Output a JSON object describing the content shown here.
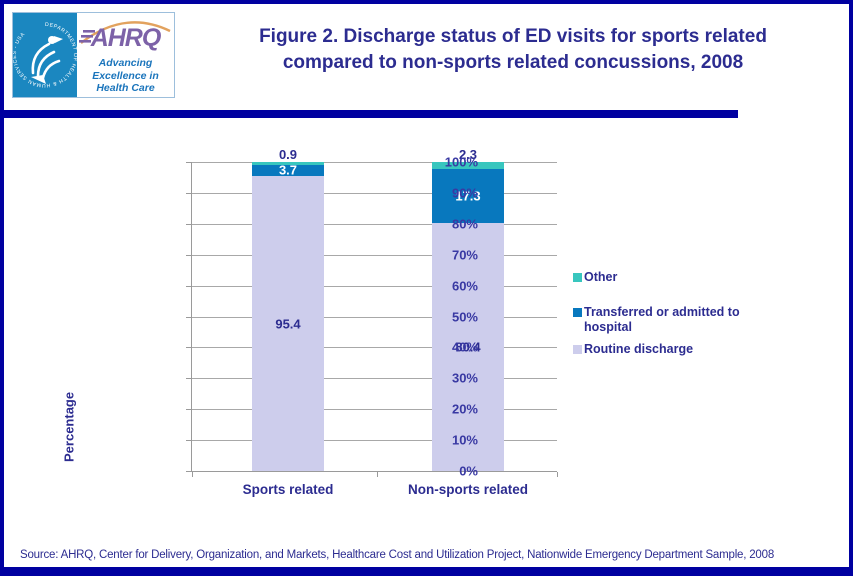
{
  "header": {
    "logo": {
      "ring_text": "DEPARTMENT OF HEALTH & HUMAN SERVICES - USA",
      "acronym": "AHRQ",
      "tagline": [
        "Advancing",
        "Excellence in",
        "Health Care"
      ]
    },
    "title_line1": "Figure 2. Discharge status of ED visits for sports related",
    "title_line2": "compared to non-sports related concussions, 2008"
  },
  "chart_data": {
    "type": "bar",
    "stacked": true,
    "title": "Figure 2. Discharge status of ED visits for sports related compared to non-sports related concussions, 2008",
    "categories": [
      "Sports related",
      "Non-sports related"
    ],
    "series": [
      {
        "name": "Routine discharge",
        "values": [
          95.4,
          80.4
        ],
        "color": "#CDCDEC",
        "label_color": "#2C2C90"
      },
      {
        "name": "Transferred or admitted to hospital",
        "values": [
          3.7,
          17.3
        ],
        "color": "#0878BE",
        "label_color": "#FFFFFF"
      },
      {
        "name": "Other",
        "values": [
          0.9,
          2.3
        ],
        "color": "#38C6BE",
        "label_color": "#2C2C90"
      }
    ],
    "xlabel": "",
    "ylabel": "Percentage",
    "ylim": [
      0,
      100
    ],
    "ytick_step": 10,
    "ytick_suffix": "%",
    "grid": true,
    "legend_position": "right",
    "legend_order": [
      "Other",
      "Transferred or admitted to hospital",
      "Routine discharge"
    ]
  },
  "footer": {
    "source": "Source: AHRQ, Center for Delivery, Organization, and Markets, Healthcare Cost and Utilization Project, Nationwide Emergency Department Sample, 2008"
  },
  "colors": {
    "navy": "#0000A0",
    "title_text": "#2C2C90",
    "axis_text": "#3939A3",
    "grid": "#A8A8A8",
    "hhs_blue": "#1B87C0",
    "ahrq_purple": "#7D62A8",
    "arc_orange": "#E2A25E",
    "tagline_blue": "#1B75BC"
  }
}
